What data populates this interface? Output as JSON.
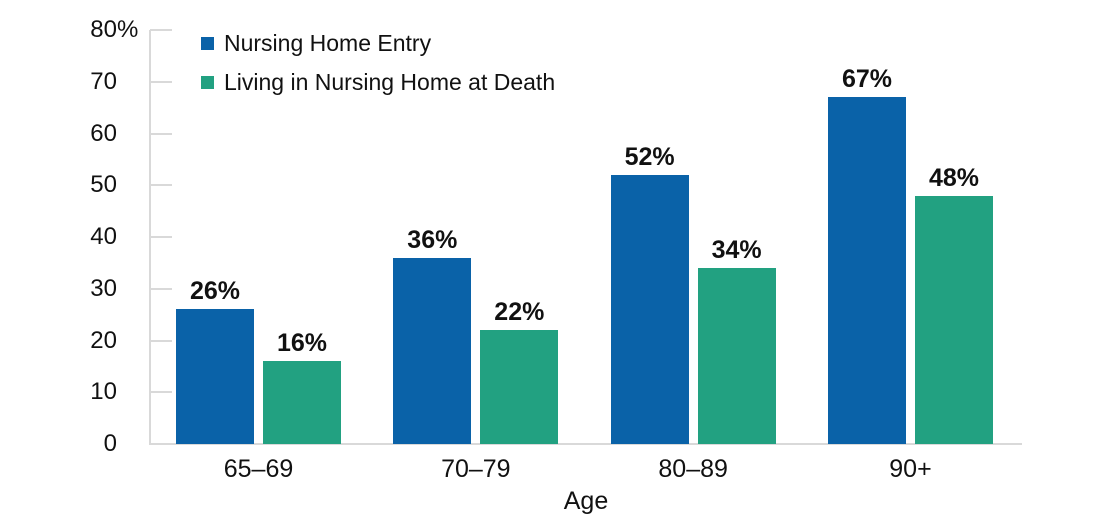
{
  "chart_data": {
    "type": "bar",
    "title": "",
    "xlabel": "Age",
    "ylabel": "",
    "categories": [
      "65–69",
      "70–79",
      "80–89",
      "90+"
    ],
    "series": [
      {
        "name": "Nursing Home Entry",
        "color": "#0a62a8",
        "values": [
          26,
          36,
          52,
          67
        ]
      },
      {
        "name": "Living in Nursing Home at Death",
        "color": "#22a181",
        "values": [
          16,
          22,
          34,
          48
        ]
      }
    ],
    "value_suffix": "%",
    "ylim": [
      0,
      80
    ],
    "y_tick_labels": [
      "0",
      "10",
      "20",
      "30",
      "40",
      "50",
      "60",
      "70",
      "80%"
    ],
    "grid": false,
    "legend_position": "top-left",
    "axis_color": "#d9d9d9",
    "text_color": "#111111"
  }
}
